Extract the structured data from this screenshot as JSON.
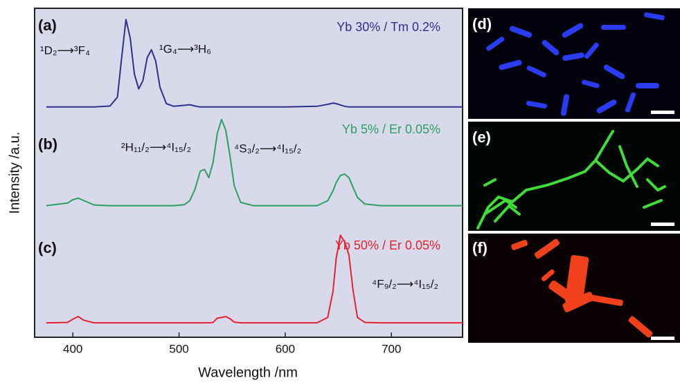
{
  "chart_data": {
    "type": "line",
    "xlabel": "Wavelength /nm",
    "ylabel": "Intensity /a.u.",
    "xlim": [
      364,
      767
    ],
    "xticks": [
      400,
      500,
      600,
      700
    ],
    "ylim": [
      0,
      100
    ],
    "background": "#d9d9ec",
    "panel_labels": [
      "(a)",
      "(b)",
      "(c)"
    ],
    "annotations": [
      "¹D₂⟶³F₄",
      "¹G₄⟶³H₆",
      "²H₁₁/₂⟶⁴I₁₅/₂",
      "⁴S₃/₂⟶⁴I₁₅/₂",
      "⁴F₉/₂⟶⁴I₁₅/₂"
    ],
    "x": [
      375,
      395,
      400,
      405,
      410,
      420,
      435,
      442,
      446,
      450,
      454,
      458,
      462,
      466,
      470,
      474,
      478,
      482,
      488,
      495,
      505,
      510,
      515,
      520,
      524,
      528,
      532,
      536,
      540,
      544,
      548,
      552,
      558,
      570,
      600,
      630,
      640,
      645,
      648,
      652,
      656,
      660,
      664,
      668,
      675,
      690,
      720,
      767
    ],
    "series": [
      {
        "name": "Yb 30% / Tm 0.2%",
        "color": "#2b2f8f",
        "values": [
          70,
          70,
          70,
          70,
          70,
          70,
          70.3,
          73,
          85,
          96.6,
          91,
          80,
          75.5,
          78,
          85,
          87.4,
          84,
          76,
          71,
          70.2,
          70.5,
          70.7,
          70.3,
          70,
          70,
          70,
          70,
          70,
          70,
          70,
          70,
          70,
          70,
          70,
          70,
          70.2,
          70.8,
          71.2,
          71,
          70.6,
          70.2,
          70,
          70,
          70,
          70,
          70,
          70,
          70
        ]
      },
      {
        "name": "Yb 5% / Er 0.05%",
        "color": "#2aa060",
        "values": [
          40,
          40.8,
          41.8,
          42.3,
          41.6,
          40.2,
          40,
          40,
          40,
          40,
          40,
          40,
          40,
          40,
          40,
          40,
          40,
          40,
          40,
          40,
          40.3,
          41.5,
          45,
          50.5,
          51,
          48.5,
          53,
          62,
          66.2,
          63,
          55,
          46,
          41,
          40,
          40,
          40,
          41.5,
          44.5,
          47,
          49.2,
          49.6,
          48.5,
          45.5,
          42.5,
          40.5,
          40,
          40,
          40
        ]
      },
      {
        "name": "Yb 50% / Er 0.05%",
        "color": "#e5212b",
        "values": [
          4.4,
          4.5,
          5.5,
          6.3,
          5.2,
          4.4,
          4.4,
          4.4,
          4.4,
          4.4,
          4.4,
          4.4,
          4.4,
          4.4,
          4.4,
          4.4,
          4.4,
          4.4,
          4.4,
          4.4,
          4.4,
          4.4,
          4.4,
          4.4,
          4.4,
          4.4,
          4.5,
          5.8,
          6,
          6.3,
          5.6,
          4.6,
          4.4,
          4.4,
          4.4,
          4.4,
          6,
          14,
          24,
          31,
          29,
          25,
          14,
          6,
          4.5,
          4.4,
          4.4,
          4.4
        ]
      }
    ]
  },
  "micrographs": [
    {
      "label": "(d)"
    },
    {
      "label": "(e)"
    },
    {
      "label": "(f)"
    }
  ]
}
